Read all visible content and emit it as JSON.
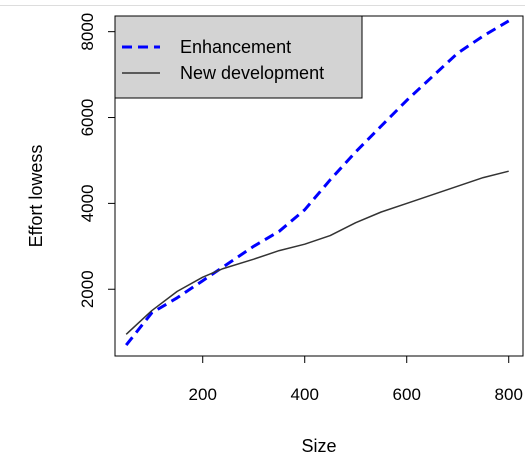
{
  "chart_data": {
    "type": "line",
    "xlabel": "Size",
    "ylabel": "Effort lowess",
    "xlim": [
      28,
      828
    ],
    "ylim": [
      445,
      8365
    ],
    "x_ticks": [
      "200",
      "400",
      "600",
      "800"
    ],
    "y_ticks": [
      "2000",
      "4000",
      "6000",
      "8000"
    ],
    "grid": false,
    "legend_position": "top-left",
    "series": [
      {
        "name": "Enhancement",
        "color": "#0000ff",
        "line_style": "dashed",
        "points": [
          [
            50,
            700
          ],
          [
            100,
            1450
          ],
          [
            150,
            1800
          ],
          [
            200,
            2200
          ],
          [
            250,
            2600
          ],
          [
            300,
            3000
          ],
          [
            350,
            3350
          ],
          [
            400,
            3850
          ],
          [
            450,
            4550
          ],
          [
            500,
            5200
          ],
          [
            550,
            5800
          ],
          [
            600,
            6400
          ],
          [
            650,
            6950
          ],
          [
            700,
            7500
          ],
          [
            750,
            7900
          ],
          [
            800,
            8250
          ]
        ]
      },
      {
        "name": "New development",
        "color": "#333333",
        "line_style": "solid",
        "points": [
          [
            50,
            950
          ],
          [
            100,
            1500
          ],
          [
            150,
            1950
          ],
          [
            200,
            2280
          ],
          [
            240,
            2480
          ],
          [
            300,
            2700
          ],
          [
            350,
            2900
          ],
          [
            400,
            3050
          ],
          [
            450,
            3250
          ],
          [
            500,
            3550
          ],
          [
            550,
            3800
          ],
          [
            600,
            4000
          ],
          [
            650,
            4200
          ],
          [
            700,
            4400
          ],
          [
            750,
            4600
          ],
          [
            800,
            4750
          ]
        ]
      }
    ]
  }
}
